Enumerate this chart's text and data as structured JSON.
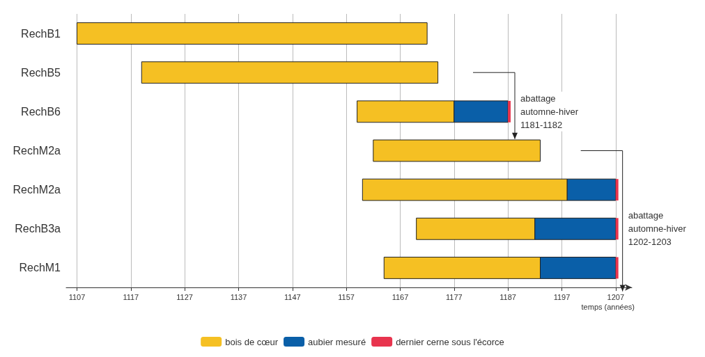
{
  "chart_data": {
    "type": "bar",
    "orientation": "horizontal",
    "categories": [
      "RechB1",
      "RechB5",
      "RechB6",
      "RechM2a",
      "RechM2a",
      "RechB3a",
      "RechM1"
    ],
    "series": [
      {
        "name": "bois de cœur",
        "color": "#f5c023",
        "base": [
          1107,
          1119,
          1159,
          1162,
          1160,
          1170,
          1164
        ],
        "values": [
          65,
          55,
          18,
          31,
          38,
          22,
          29
        ]
      },
      {
        "name": "aubier mesuré",
        "color": "#0a5fa8",
        "base": [
          null,
          null,
          1177,
          null,
          1198,
          1192,
          1193
        ],
        "values": [
          null,
          null,
          10,
          null,
          9,
          15,
          14
        ]
      },
      {
        "name": "dernier cerne sous l'écorce",
        "color": "#e8344e",
        "base": [
          null,
          null,
          1187,
          null,
          1207,
          1207,
          1207
        ],
        "values": [
          null,
          null,
          0.5,
          null,
          0.5,
          0.5,
          0.5
        ]
      }
    ],
    "xlabel": "temps (années)",
    "xlim": [
      1105,
      1210
    ],
    "xticks": [
      1107,
      1117,
      1127,
      1137,
      1147,
      1157,
      1167,
      1177,
      1187,
      1197,
      1207
    ],
    "grid": "x",
    "legend": "bottom",
    "annotations": [
      "abattage\nautomne-hiver\n1181-1182",
      "abattage\nautomne-hiver\n1202-1203"
    ]
  }
}
